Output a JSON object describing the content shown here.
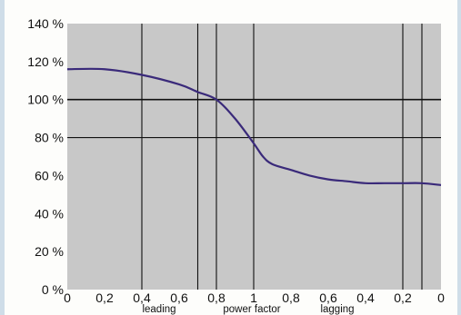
{
  "chart_data": {
    "type": "line",
    "title": "",
    "xlabel": "power factor",
    "x_region_labels": [
      "leading",
      "power factor",
      "lagging"
    ],
    "y_ticks": [
      "140 %",
      "120 %",
      "100 %",
      "80 %",
      "60 %",
      "40 %",
      "20 %",
      "0 %"
    ],
    "ylim": [
      0,
      140
    ],
    "x_ticks": [
      "0",
      "0,2",
      "0,4",
      "0,6",
      "0,8",
      "1",
      "0,8",
      "0,6",
      "0,4",
      "0,2",
      "0"
    ],
    "x_scale": "power factor from leading 0 through 1 to lagging 0",
    "reference_lines": {
      "horizontal": [
        100,
        80
      ],
      "vertical_pf": [
        "0,4 leading",
        "0,7 leading",
        "0,8 leading",
        "1",
        "0,2 lagging",
        "0,1 lagging"
      ]
    },
    "series": [
      {
        "values_note": "x as signed position: negative = leading (1 - pf), positive = lagging (1 - pf)",
        "x": [
          -1.0,
          -0.8,
          -0.6,
          -0.4,
          -0.3,
          -0.2,
          -0.1,
          0.0,
          0.05,
          0.1,
          0.2,
          0.3,
          0.4,
          0.5,
          0.6,
          0.7,
          0.8,
          0.9,
          1.0
        ],
        "values": [
          116,
          116,
          113,
          108,
          104,
          100,
          90,
          77,
          70,
          66,
          63,
          60,
          58,
          57,
          56,
          56,
          56,
          56,
          55
        ]
      }
    ],
    "colors": {
      "plot_bg": "#c8c8c8",
      "line": "#3a2a7a",
      "grid": "#111111"
    },
    "grid": false
  }
}
